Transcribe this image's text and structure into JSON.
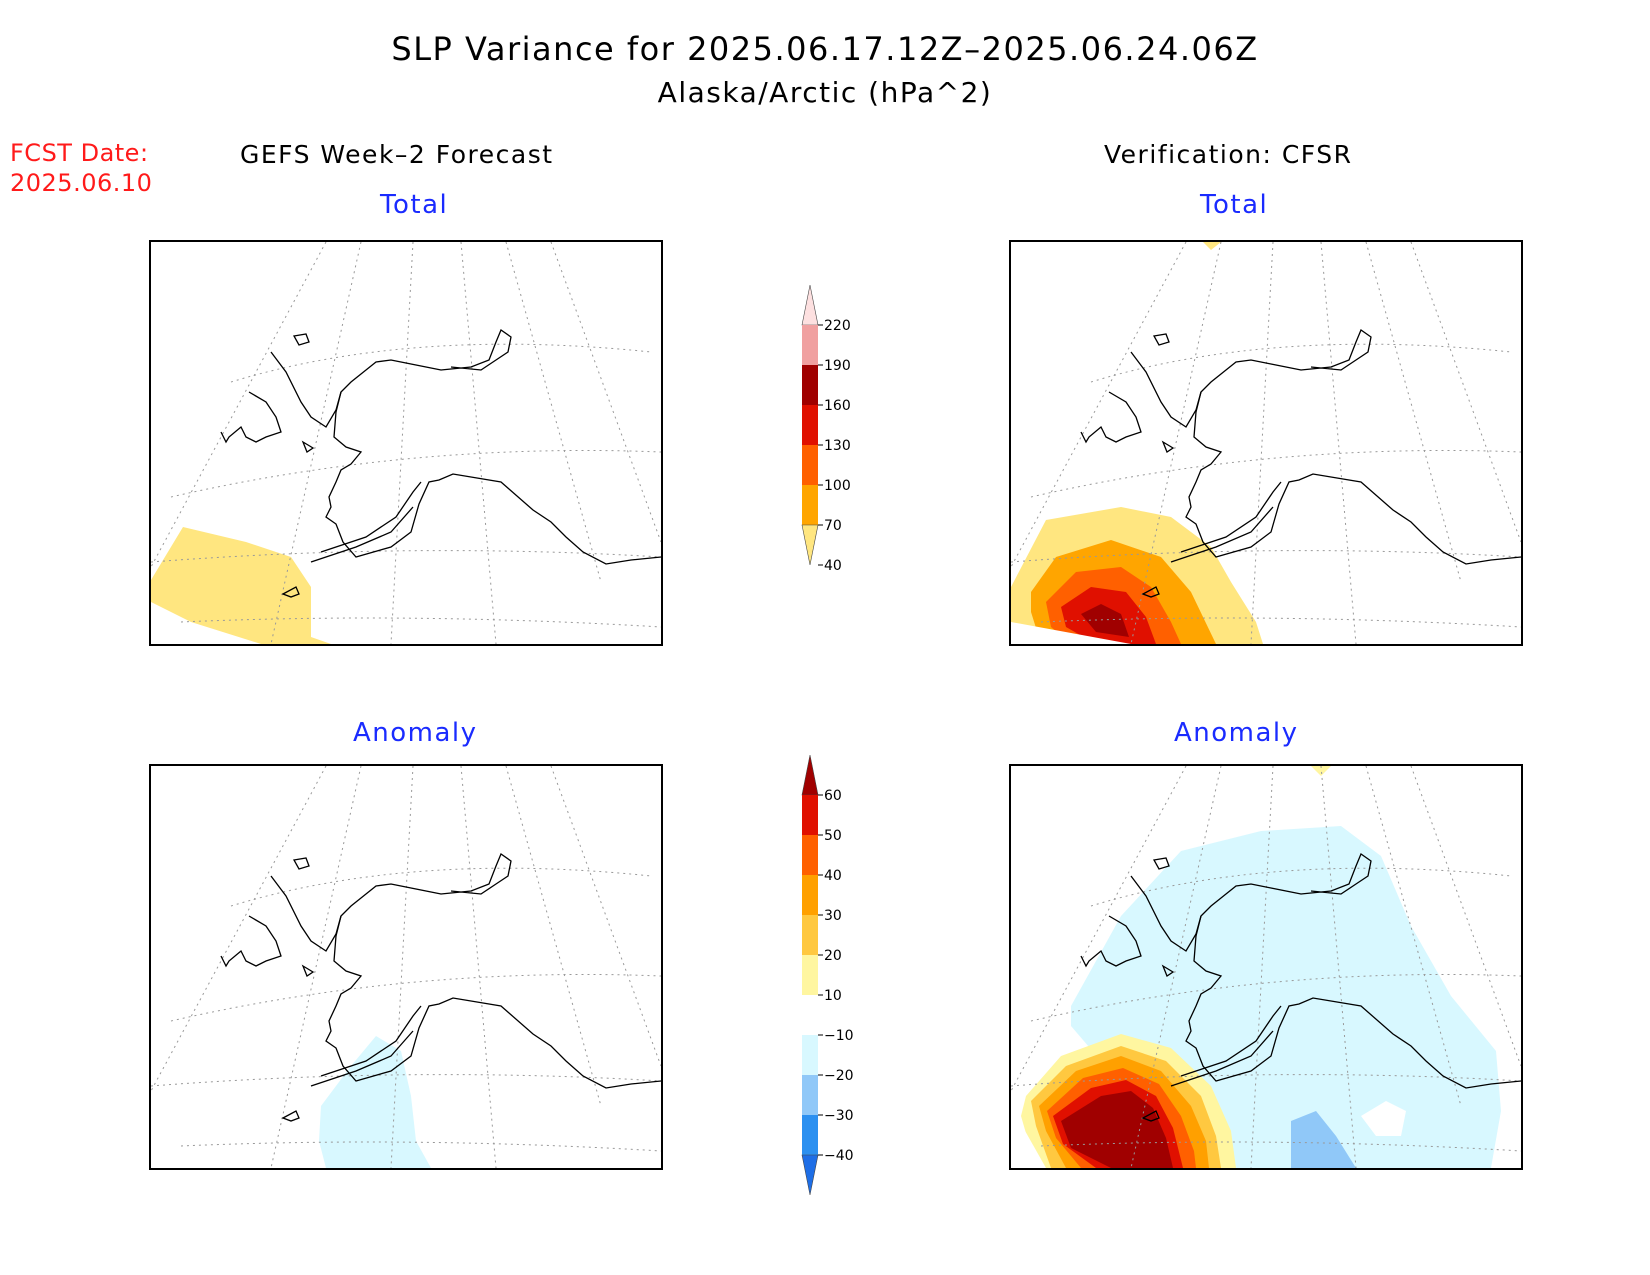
{
  "title": {
    "line1": "SLP Variance for 2025.06.17.12Z–2025.06.24.06Z",
    "line2": "Alaska/Arctic (hPa^2)"
  },
  "fcst_date": {
    "label": "FCST Date:",
    "value": "2025.06.10"
  },
  "columns": {
    "forecast_header": "GEFS Week–2 Forecast",
    "verification_header": "Verification: CFSR"
  },
  "panels": {
    "forecast_total": "Total",
    "verification_total": "Total",
    "forecast_anomaly": "Anomaly",
    "verification_anomaly": "Anomaly"
  },
  "colorbar_total": {
    "levels": [
      "40",
      "70",
      "100",
      "130",
      "160",
      "190",
      "220"
    ],
    "colors": [
      "#ffe680",
      "#ffa500",
      "#ff6000",
      "#e01000",
      "#a00000",
      "#f0a0a0",
      "#fde0e0"
    ]
  },
  "colorbar_anomaly": {
    "levels": [
      "−40",
      "−30",
      "−20",
      "−10",
      "10",
      "20",
      "30",
      "40",
      "50",
      "60"
    ],
    "colors": [
      "#1e6ee6",
      "#2c90f0",
      "#90c8f8",
      "#d8f8ff",
      "#ffffff",
      "#fff6a0",
      "#ffc840",
      "#ffa000",
      "#ff6000",
      "#e01000",
      "#a00000"
    ]
  }
}
